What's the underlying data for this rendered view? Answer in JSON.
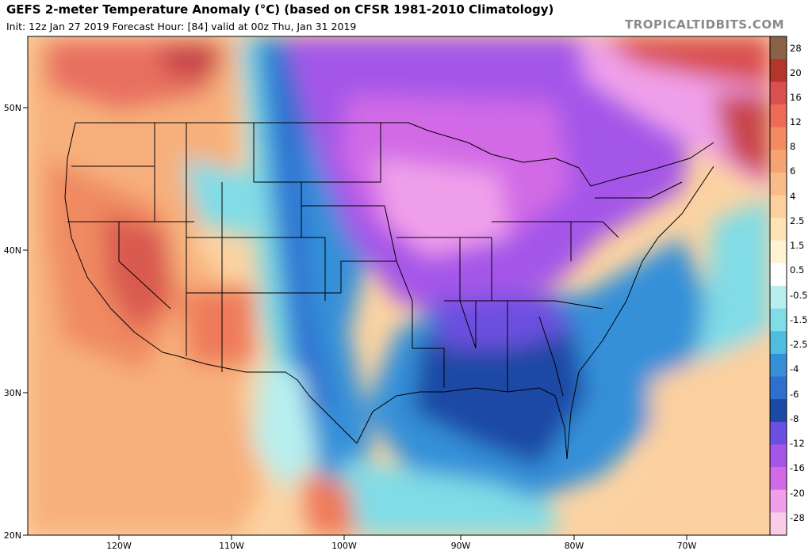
{
  "header": {
    "title": "GEFS 2-meter Temperature Anomaly (°C) (based on CFSR 1981-2010 Climatology)",
    "subtitle": "Init: 12z Jan 27 2019   Forecast Hour: [84]   valid at 00z Thu, Jan 31 2019",
    "watermark": "TROPICALTIDBITS.COM"
  },
  "map": {
    "lat_labels": [
      "50N",
      "40N",
      "30N",
      "20N"
    ],
    "lon_labels": [
      "120W",
      "110W",
      "100W",
      "90W",
      "80W",
      "70W"
    ]
  },
  "colorbar": {
    "labels": [
      "28",
      "20",
      "16",
      "12",
      "8",
      "6",
      "4",
      "2.5",
      "1.5",
      "0.5",
      "-0.5",
      "-1.5",
      "-2.5",
      "-4",
      "-6",
      "-8",
      "-12",
      "-16",
      "-20",
      "-28"
    ],
    "colors": [
      "#8a6248",
      "#b4352a",
      "#d95050",
      "#ee6b57",
      "#f38a62",
      "#f6a374",
      "#f9bb8a",
      "#fbd09e",
      "#fde3b5",
      "#fff3d4",
      "#ffffff",
      "#b8efee",
      "#80dce6",
      "#4fbde0",
      "#3690d8",
      "#2f6fd0",
      "#1a4aa5",
      "#6c4fe0",
      "#a456e8",
      "#d26ae6",
      "#f0a0ea",
      "#f9cde8"
    ]
  }
}
